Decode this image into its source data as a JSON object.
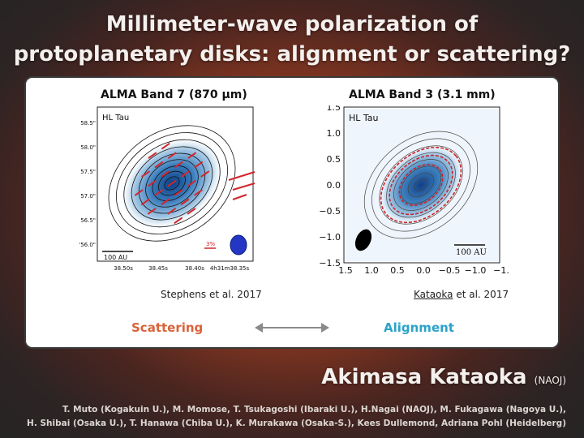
{
  "slide": {
    "title_line1": "Millimeter-wave polarization of",
    "title_line2": "protoplanetary disks: alignment or scattering?"
  },
  "left_figure": {
    "title": "ALMA Band 7 (870 μm)",
    "object_label": "HL Tau",
    "dec_ticks": [
      "58.5\"",
      "58.0\"",
      "57.5\"",
      "57.0\"",
      "56.5\"",
      "'56.0\""
    ],
    "ra_ticks": [
      "38.50s",
      "38.45s",
      "38.40s",
      "4h31m38.35s"
    ],
    "scale_bar": "100 AU",
    "pol_scale": "3%",
    "caption": "Stephens et al. 2017"
  },
  "right_figure": {
    "title": "ALMA Band 3 (3.1 mm)",
    "object_label": "HL Tau",
    "y_ticks": [
      "1.5",
      "1.0",
      "0.5",
      "0.0",
      "−0.5",
      "−1.0",
      "−1.5"
    ],
    "x_ticks": [
      "1.5",
      "1.0",
      "0.5",
      "0.0",
      "−0.5",
      "−1.0",
      "−1."
    ],
    "scale_bar": "100 AU",
    "caption_author": "Kataoka",
    "caption_rest": " et al. 2017"
  },
  "comparison": {
    "left_label": "Scattering",
    "right_label": "Alignment",
    "left_color": "#d9623a",
    "right_color": "#2aa3c8"
  },
  "speaker": {
    "name": "Akimasa Kataoka",
    "affiliation": "(NAOJ)"
  },
  "coauthors": {
    "line1": "T. Muto (Kogakuin U.), M. Momose, T. Tsukagoshi (Ibaraki U.), H.Nagai (NAOJ), M. Fukagawa (Nagoya U.),",
    "line2": "H. Shibai (Osaka U.), T. Hanawa (Chiba U.), K. Murakawa (Osaka-S.), Kees Dullemond, Adriana Pohl (Heidelberg)"
  }
}
